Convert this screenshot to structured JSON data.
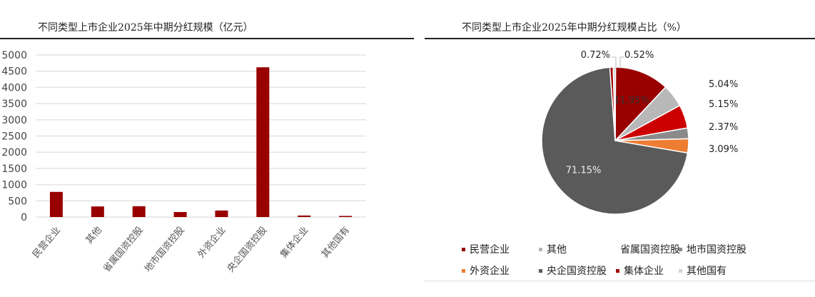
{
  "chart_data": [
    {
      "type": "bar",
      "title": "不同类型上市企业2025年中期分红规模（亿元）",
      "categories": [
        "民营企业",
        "其他",
        "省属国资控股",
        "地市国资控股",
        "外资企业",
        "央企国资控股",
        "集体企业",
        "其他国有"
      ],
      "values": [
        776,
        327,
        334,
        154,
        201,
        4620,
        47,
        34
      ],
      "ylim": [
        0,
        5000
      ],
      "yticks": [
        0,
        500,
        1000,
        1500,
        2000,
        2500,
        3000,
        3500,
        4000,
        4500,
        5000
      ],
      "grid": true,
      "color": "#990000"
    },
    {
      "type": "pie",
      "title": "不同类型上市企业2025年中期分红规模占比（%）",
      "labels": [
        "民营企业",
        "其他",
        "省属国资控股",
        "地市国资控股",
        "外资企业",
        "央企国资控股",
        "集体企业",
        "其他国有"
      ],
      "values": [
        11.95,
        5.04,
        5.15,
        2.37,
        3.09,
        71.15,
        0.72,
        0.52
      ],
      "data_labels": [
        "11.95%",
        "5.04%",
        "5.15%",
        "2.37%",
        "3.09%",
        "71.15%",
        "0.72%",
        "0.52%"
      ],
      "colors": [
        "#990000",
        "#b8b8b8",
        "#cc0000",
        "#8a8a8a",
        "#ed7d31",
        "#5a5a5a",
        "#a00000",
        "#d4d4d4"
      ],
      "legend_position": "bottom"
    }
  ]
}
